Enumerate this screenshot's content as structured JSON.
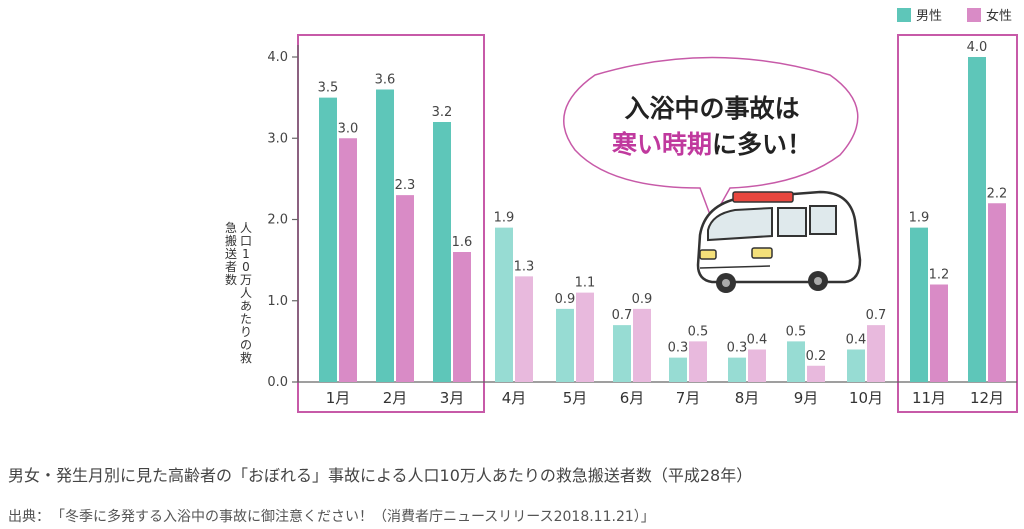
{
  "chart_data": {
    "type": "bar",
    "categories": [
      "1月",
      "2月",
      "3月",
      "4月",
      "5月",
      "6月",
      "7月",
      "8月",
      "9月",
      "10月",
      "11月",
      "12月"
    ],
    "series": [
      {
        "name": "男性",
        "color": "#5ec6b9",
        "light_color": "#97dcd3",
        "values": [
          3.5,
          3.6,
          3.2,
          1.9,
          0.9,
          0.7,
          0.3,
          0.3,
          0.5,
          0.4,
          1.9,
          4.0
        ]
      },
      {
        "name": "女性",
        "color": "#d98bc6",
        "light_color": "#e8b9dd",
        "values": [
          3.0,
          2.3,
          1.6,
          1.3,
          1.1,
          0.9,
          0.5,
          0.4,
          0.2,
          0.7,
          1.2,
          2.2
        ]
      }
    ],
    "ylim": [
      0,
      4.0
    ],
    "yticks": [
      "0.0",
      "1.0",
      "2.0",
      "3.0",
      "4.0"
    ],
    "ylabel": "人口10万人あたりの救急搬送者数",
    "highlighted_months": [
      "1月",
      "2月",
      "3月",
      "11月",
      "12月"
    ],
    "legend_position": "top-right",
    "highlight_border_color": "#c75aa8"
  },
  "callout": {
    "line1": "入浴中の事故は",
    "line2_accent": "寒い時期",
    "line2_rest": "に多い！",
    "accent_color": "#c0399e"
  },
  "caption": "男女・発生月別に見た高齢者の「おぼれる」事故による人口10万人あたりの救急搬送者数（平成28年）",
  "source": {
    "label": "出典：",
    "text": "「冬季に多発する入浴中の事故に御注意ください！（消費者庁ニュースリリース2018.11.21）」"
  }
}
